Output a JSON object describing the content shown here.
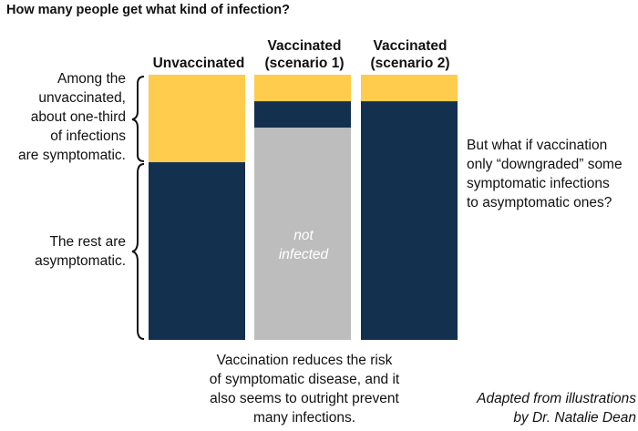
{
  "title": "How many people get what kind of infection?",
  "colors": {
    "symptomatic": "#FFCC4D",
    "asymptomatic": "#13304F",
    "not_infected": "#BDBDBD",
    "text": "#111111"
  },
  "chart_data": {
    "type": "bar",
    "stacked": true,
    "ylim": [
      0,
      1
    ],
    "categories": [
      "Unvaccinated",
      "Vaccinated\n(scenario 1)",
      "Vaccinated\n(scenario 2)"
    ],
    "series": [
      {
        "key": "symptomatic",
        "values": [
          0.33,
          0.1,
          0.1
        ]
      },
      {
        "key": "asymptomatic",
        "values": [
          0.67,
          0.1,
          0.9
        ]
      },
      {
        "key": "not_infected",
        "values": [
          0,
          0.8,
          0
        ],
        "in_bar_label": "not\ninfected"
      }
    ],
    "legend": "none",
    "grid": false
  },
  "annotations": {
    "symptomatic_note": "Among the\nunvaccinated,\nabout one-third\nof infections\nare symptomatic.",
    "asymptomatic_note": "The rest are\nasymptomatic.",
    "scenario2_note": "But what if vaccination\nonly “downgraded” some\nsymptomatic infections\nto asymptomatic ones?",
    "scenario1_note": "Vaccination reduces the risk\nof symptomatic disease, and it\nalso seems to outright prevent\nmany infections."
  },
  "credit": "Adapted from illustrations\nby Dr. Natalie Dean"
}
